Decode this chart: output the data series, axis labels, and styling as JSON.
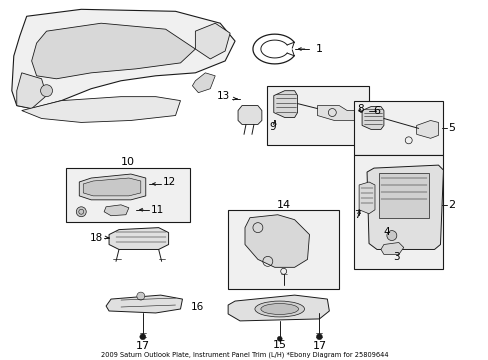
{
  "title": "2009 Saturn Outlook Plate, Instrument Panel Trim (L/H) *Ebony Diagram for 25809644",
  "bg_color": "#ffffff",
  "fig_width": 4.89,
  "fig_height": 3.6,
  "dpi": 100,
  "line_color": "#1a1a1a",
  "line_width": 0.7,
  "fill_color": "#e8e8e8"
}
